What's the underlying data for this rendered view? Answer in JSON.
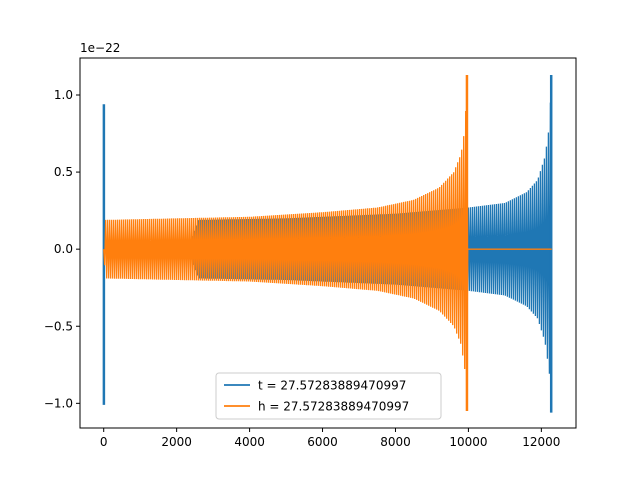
{
  "chart_data": {
    "type": "line",
    "title": "",
    "xlabel": "",
    "ylabel": "",
    "y_scale_label": "1e−22",
    "xlim": [
      -650,
      12950
    ],
    "ylim": [
      -1.16,
      1.24
    ],
    "x_ticks": [
      0,
      2000,
      4000,
      6000,
      8000,
      10000,
      12000
    ],
    "y_ticks": [
      -1.0,
      -0.5,
      0.0,
      0.5,
      1.0
    ],
    "x_tick_labels": [
      "0",
      "2000",
      "4000",
      "6000",
      "8000",
      "10000",
      "12000"
    ],
    "y_tick_labels": [
      "−1.0",
      "−0.5",
      "0.0",
      "0.5",
      "1.0"
    ],
    "grid": false,
    "legend_position": "lower-center",
    "series": [
      {
        "name": "t = 27.57283889470997",
        "color": "#1f77b4",
        "burst": {
          "x_start": -10,
          "x_end": 20,
          "y_max": 0.94,
          "y_min": -1.01
        },
        "envelope": [
          {
            "x": 20,
            "amp": 0.0
          },
          {
            "x": 2300,
            "amp": 0.0
          },
          {
            "x": 2600,
            "amp": 0.19
          },
          {
            "x": 5000,
            "amp": 0.2
          },
          {
            "x": 8000,
            "amp": 0.23
          },
          {
            "x": 10000,
            "amp": 0.27
          },
          {
            "x": 11000,
            "amp": 0.3
          },
          {
            "x": 11600,
            "amp": 0.37
          },
          {
            "x": 11900,
            "amp": 0.45
          },
          {
            "x": 12100,
            "amp": 0.6
          },
          {
            "x": 12220,
            "amp": 0.8
          },
          {
            "x": 12270,
            "amp": 1.06
          },
          {
            "x": 12290,
            "amp": 0.0
          },
          {
            "x": 12300,
            "amp": 0.0
          }
        ],
        "peak": {
          "x": 12270,
          "y_max": 1.13,
          "y_min": -1.06
        }
      },
      {
        "name": "h = 27.57283889470997",
        "color": "#ff7f0e",
        "envelope": [
          {
            "x": 0,
            "amp": 0.0
          },
          {
            "x": 50,
            "amp": 0.19
          },
          {
            "x": 2000,
            "amp": 0.2
          },
          {
            "x": 4000,
            "amp": 0.21
          },
          {
            "x": 6000,
            "amp": 0.24
          },
          {
            "x": 7500,
            "amp": 0.27
          },
          {
            "x": 8500,
            "amp": 0.32
          },
          {
            "x": 9200,
            "amp": 0.4
          },
          {
            "x": 9600,
            "amp": 0.5
          },
          {
            "x": 9800,
            "amp": 0.62
          },
          {
            "x": 9900,
            "amp": 0.78
          },
          {
            "x": 9960,
            "amp": 1.05
          },
          {
            "x": 9980,
            "amp": 0.0
          },
          {
            "x": 12300,
            "amp": 0.0
          }
        ],
        "peak": {
          "x": 9960,
          "y_max": 1.13,
          "y_min": -1.05
        }
      }
    ]
  }
}
